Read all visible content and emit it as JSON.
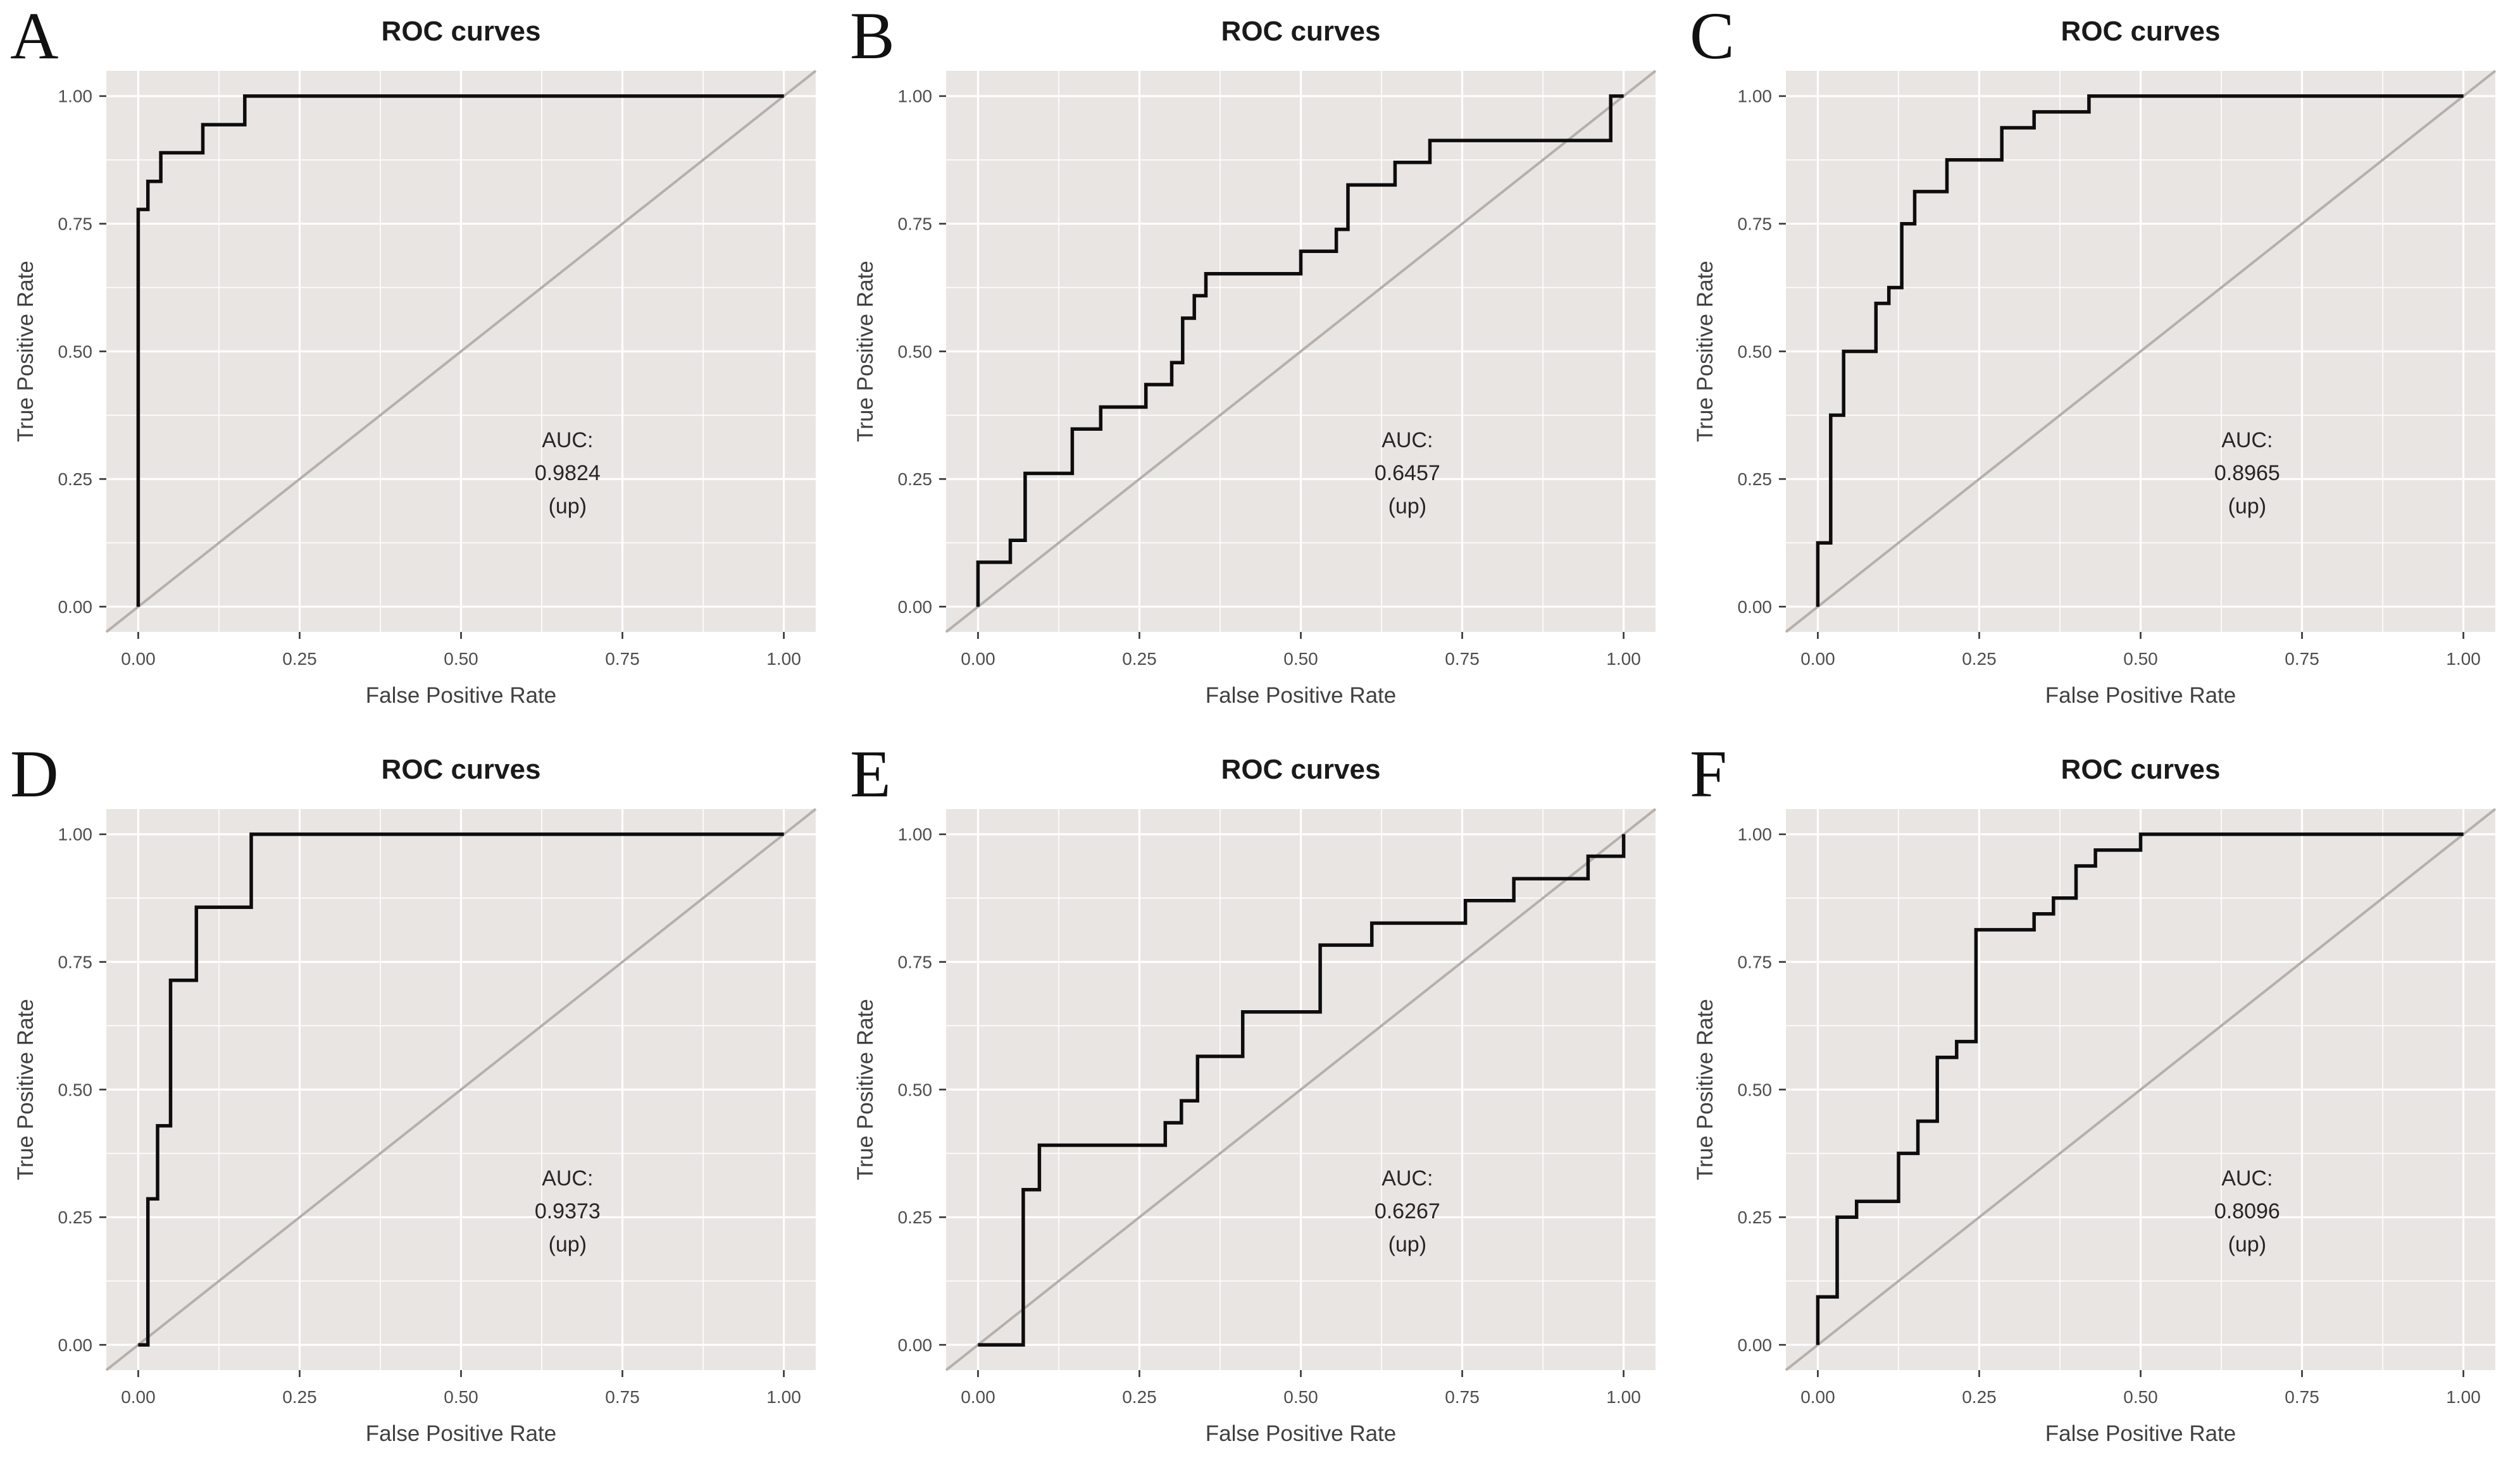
{
  "figure": {
    "xlabel": "False Positive Rate",
    "ylabel": "True Positive Rate",
    "x_tick_labels": [
      "0.00",
      "0.25",
      "0.50",
      "0.75",
      "1.00"
    ],
    "y_tick_labels": [
      "0.00",
      "0.25",
      "0.50",
      "0.75",
      "1.00"
    ],
    "major_ticks": [
      0,
      0.25,
      0.5,
      0.75,
      1
    ],
    "minor_ticks": [
      0.125,
      0.375,
      0.625,
      0.875
    ]
  },
  "colors": {
    "panel_background": "#e9e5e2",
    "gridline": "#ffffff",
    "roc_curve": "#0d0d0d",
    "diagonal_line": "#b5b0ac",
    "title_text": "#1a1a1a",
    "axis_text": "#404040",
    "tick_text": "#4d4d4d",
    "annotation_text": "#262626",
    "letter_text": "#111111"
  },
  "chart_data": [
    {
      "label": "A",
      "type": "line",
      "title": "ROC curves",
      "xlabel": "False Positive Rate",
      "ylabel": "True Positive Rate",
      "xlim": [
        0,
        1
      ],
      "ylim": [
        0,
        1
      ],
      "auc": "0.9824",
      "annotation_lines": [
        "AUC:",
        "0.9824",
        "(up)"
      ],
      "roc_points": [
        [
          0,
          0
        ],
        [
          0,
          0.778
        ],
        [
          0.015,
          0.778
        ],
        [
          0.015,
          0.833
        ],
        [
          0.035,
          0.833
        ],
        [
          0.035,
          0.889
        ],
        [
          0.1,
          0.889
        ],
        [
          0.1,
          0.944
        ],
        [
          0.165,
          0.944
        ],
        [
          0.165,
          1.0
        ],
        [
          1.0,
          1.0
        ]
      ]
    },
    {
      "label": "B",
      "type": "line",
      "title": "ROC curves",
      "xlabel": "False Positive Rate",
      "ylabel": "True Positive Rate",
      "xlim": [
        0,
        1
      ],
      "ylim": [
        0,
        1
      ],
      "auc": "0.6457",
      "annotation_lines": [
        "AUC:",
        "0.6457",
        "(up)"
      ],
      "roc_points": [
        [
          0,
          0
        ],
        [
          0,
          0.087
        ],
        [
          0.05,
          0.087
        ],
        [
          0.05,
          0.13
        ],
        [
          0.073,
          0.13
        ],
        [
          0.073,
          0.261
        ],
        [
          0.146,
          0.261
        ],
        [
          0.146,
          0.348
        ],
        [
          0.19,
          0.348
        ],
        [
          0.19,
          0.391
        ],
        [
          0.26,
          0.391
        ],
        [
          0.26,
          0.435
        ],
        [
          0.3,
          0.435
        ],
        [
          0.3,
          0.478
        ],
        [
          0.317,
          0.478
        ],
        [
          0.317,
          0.565
        ],
        [
          0.335,
          0.565
        ],
        [
          0.335,
          0.609
        ],
        [
          0.353,
          0.609
        ],
        [
          0.353,
          0.652
        ],
        [
          0.5,
          0.652
        ],
        [
          0.5,
          0.696
        ],
        [
          0.555,
          0.696
        ],
        [
          0.555,
          0.739
        ],
        [
          0.573,
          0.739
        ],
        [
          0.573,
          0.826
        ],
        [
          0.646,
          0.826
        ],
        [
          0.646,
          0.87
        ],
        [
          0.7,
          0.87
        ],
        [
          0.7,
          0.913
        ],
        [
          0.98,
          0.913
        ],
        [
          0.98,
          1.0
        ],
        [
          1.0,
          1.0
        ]
      ]
    },
    {
      "label": "C",
      "type": "line",
      "title": "ROC curves",
      "xlabel": "False Positive Rate",
      "ylabel": "True Positive Rate",
      "xlim": [
        0,
        1
      ],
      "ylim": [
        0,
        1
      ],
      "auc": "0.8965",
      "annotation_lines": [
        "AUC:",
        "0.8965",
        "(up)"
      ],
      "roc_points": [
        [
          0,
          0
        ],
        [
          0,
          0.125
        ],
        [
          0.02,
          0.125
        ],
        [
          0.02,
          0.375
        ],
        [
          0.04,
          0.375
        ],
        [
          0.04,
          0.5
        ],
        [
          0.09,
          0.5
        ],
        [
          0.09,
          0.594
        ],
        [
          0.11,
          0.594
        ],
        [
          0.11,
          0.625
        ],
        [
          0.13,
          0.625
        ],
        [
          0.13,
          0.75
        ],
        [
          0.15,
          0.75
        ],
        [
          0.15,
          0.813
        ],
        [
          0.2,
          0.813
        ],
        [
          0.2,
          0.875
        ],
        [
          0.285,
          0.875
        ],
        [
          0.285,
          0.938
        ],
        [
          0.335,
          0.938
        ],
        [
          0.335,
          0.969
        ],
        [
          0.42,
          0.969
        ],
        [
          0.42,
          1.0
        ],
        [
          1.0,
          1.0
        ]
      ]
    },
    {
      "label": "D",
      "type": "line",
      "title": "ROC curves",
      "xlabel": "False Positive Rate",
      "ylabel": "True Positive Rate",
      "xlim": [
        0,
        1
      ],
      "ylim": [
        0,
        1
      ],
      "auc": "0.9373",
      "annotation_lines": [
        "AUC:",
        "0.9373",
        "(up)"
      ],
      "roc_points": [
        [
          0,
          0
        ],
        [
          0.015,
          0
        ],
        [
          0.015,
          0.286
        ],
        [
          0.03,
          0.286
        ],
        [
          0.03,
          0.429
        ],
        [
          0.05,
          0.429
        ],
        [
          0.05,
          0.714
        ],
        [
          0.09,
          0.714
        ],
        [
          0.09,
          0.857
        ],
        [
          0.175,
          0.857
        ],
        [
          0.175,
          1.0
        ],
        [
          1.0,
          1.0
        ]
      ]
    },
    {
      "label": "E",
      "type": "line",
      "title": "ROC curves",
      "xlabel": "False Positive Rate",
      "ylabel": "True Positive Rate",
      "xlim": [
        0,
        1
      ],
      "ylim": [
        0,
        1
      ],
      "auc": "0.6267",
      "annotation_lines": [
        "AUC:",
        "0.6267",
        "(up)"
      ],
      "roc_points": [
        [
          0,
          0
        ],
        [
          0.07,
          0
        ],
        [
          0.07,
          0.304
        ],
        [
          0.095,
          0.304
        ],
        [
          0.095,
          0.391
        ],
        [
          0.29,
          0.391
        ],
        [
          0.29,
          0.435
        ],
        [
          0.315,
          0.435
        ],
        [
          0.315,
          0.478
        ],
        [
          0.34,
          0.478
        ],
        [
          0.34,
          0.565
        ],
        [
          0.41,
          0.565
        ],
        [
          0.41,
          0.652
        ],
        [
          0.53,
          0.652
        ],
        [
          0.53,
          0.783
        ],
        [
          0.61,
          0.783
        ],
        [
          0.61,
          0.826
        ],
        [
          0.755,
          0.826
        ],
        [
          0.755,
          0.87
        ],
        [
          0.83,
          0.87
        ],
        [
          0.83,
          0.913
        ],
        [
          0.945,
          0.913
        ],
        [
          0.945,
          0.957
        ],
        [
          1.0,
          0.957
        ],
        [
          1.0,
          1.0
        ]
      ]
    },
    {
      "label": "F",
      "type": "line",
      "title": "ROC curves",
      "xlabel": "False Positive Rate",
      "ylabel": "True Positive Rate",
      "xlim": [
        0,
        1
      ],
      "ylim": [
        0,
        1
      ],
      "auc": "0.8096",
      "annotation_lines": [
        "AUC:",
        "0.8096",
        "(up)"
      ],
      "roc_points": [
        [
          0,
          0
        ],
        [
          0,
          0.094
        ],
        [
          0.03,
          0.094
        ],
        [
          0.03,
          0.25
        ],
        [
          0.06,
          0.25
        ],
        [
          0.06,
          0.281
        ],
        [
          0.125,
          0.281
        ],
        [
          0.125,
          0.375
        ],
        [
          0.155,
          0.375
        ],
        [
          0.155,
          0.438
        ],
        [
          0.185,
          0.438
        ],
        [
          0.185,
          0.563
        ],
        [
          0.215,
          0.563
        ],
        [
          0.215,
          0.594
        ],
        [
          0.245,
          0.594
        ],
        [
          0.245,
          0.813
        ],
        [
          0.335,
          0.813
        ],
        [
          0.335,
          0.844
        ],
        [
          0.365,
          0.844
        ],
        [
          0.365,
          0.875
        ],
        [
          0.4,
          0.875
        ],
        [
          0.4,
          0.938
        ],
        [
          0.43,
          0.938
        ],
        [
          0.43,
          0.969
        ],
        [
          0.5,
          0.969
        ],
        [
          0.5,
          1.0
        ],
        [
          1.0,
          1.0
        ]
      ]
    }
  ]
}
